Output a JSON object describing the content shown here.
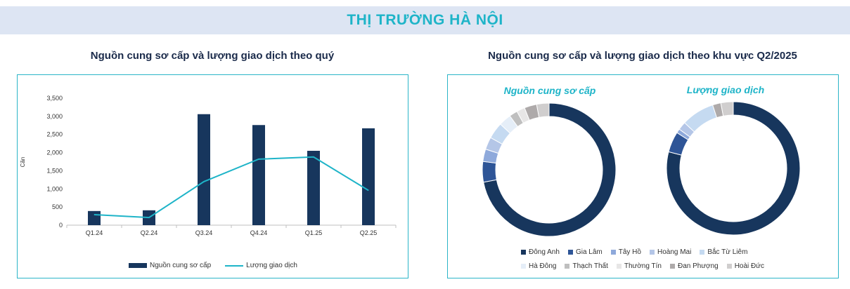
{
  "header": {
    "title": "THỊ TRƯỜNG HÀ NỘI"
  },
  "colors": {
    "bar": "#17365d",
    "line": "#1eb4c8",
    "accent": "#1eb4c8",
    "panel_border": "#2bb5c8"
  },
  "chart_data": [
    {
      "type": "bar",
      "title": "Nguồn cung sơ cấp và lượng giao dịch theo quý",
      "ylabel": "Căn",
      "xlabel": "",
      "categories": [
        "Q1.24",
        "Q2.24",
        "Q3.24",
        "Q4.24",
        "Q1.25",
        "Q2.25"
      ],
      "ylim": [
        0,
        3500
      ],
      "yticks": [
        "0",
        "500",
        "1,000",
        "1,500",
        "2,000",
        "2,500",
        "3,000",
        "3,500"
      ],
      "ytick_values": [
        0,
        500,
        1000,
        1500,
        2000,
        2500,
        3000,
        3500
      ],
      "series": [
        {
          "name": "Nguồn cung sơ cấp",
          "kind": "bar",
          "color": "#17365d",
          "values": [
            390,
            410,
            3060,
            2760,
            2050,
            2670
          ]
        },
        {
          "name": "Lượng giao dịch",
          "kind": "line",
          "color": "#1eb4c8",
          "values": [
            290,
            210,
            1200,
            1820,
            1880,
            960
          ]
        }
      ],
      "legend_position": "bottom",
      "grid": false
    },
    {
      "type": "pie",
      "title": "Nguồn cung sơ cấp và lượng giao dịch theo khu vực Q2/2025",
      "categories": [
        "Đông Anh",
        "Gia Lâm",
        "Tây Hồ",
        "Hoàng Mai",
        "Bắc Từ Liêm",
        "Hà Đông",
        "Thạch Thất",
        "Thường Tín",
        "Đan Phượng",
        "Hoài Đức"
      ],
      "colors": [
        "#17365d",
        "#2e5597",
        "#8ea9db",
        "#b4c6e7",
        "#c5daf1",
        "#e5eef8",
        "#bfbfbf",
        "#e7e6e6",
        "#aeaaaa",
        "#d0cece"
      ],
      "series": [
        {
          "name": "Nguồn cung sơ cấp",
          "values": [
            72,
            5,
            3,
            3,
            4,
            3,
            2,
            2,
            3,
            3
          ]
        },
        {
          "name": "Lượng giao dịch",
          "values": [
            79,
            5,
            1,
            2,
            8,
            0,
            0,
            0,
            2,
            3
          ]
        }
      ],
      "legend_position": "bottom"
    }
  ]
}
